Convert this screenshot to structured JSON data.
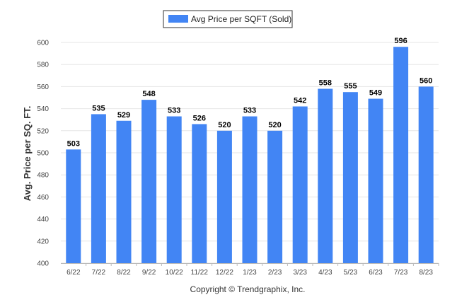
{
  "chart_data": {
    "type": "bar",
    "categories": [
      "6/22",
      "7/22",
      "8/22",
      "9/22",
      "10/22",
      "11/22",
      "12/22",
      "1/23",
      "2/23",
      "3/23",
      "4/23",
      "5/23",
      "6/23",
      "7/23",
      "8/23"
    ],
    "series": [
      {
        "name": "Avg Price per SQFT (Sold)",
        "values": [
          503,
          535,
          529,
          548,
          533,
          526,
          520,
          533,
          520,
          542,
          558,
          555,
          549,
          596,
          560
        ]
      }
    ],
    "ylabel": "Avg. Price per SQ. FT.",
    "xlabel": "",
    "ylim": [
      400,
      600
    ],
    "yticks": [
      400,
      420,
      440,
      460,
      480,
      500,
      520,
      540,
      560,
      580,
      600
    ],
    "grid": true,
    "legend_position": "top-center",
    "bar_color": "#4285f4",
    "data_labels": true
  },
  "footer": {
    "copyright": "Copyright © Trendgraphix, Inc."
  }
}
